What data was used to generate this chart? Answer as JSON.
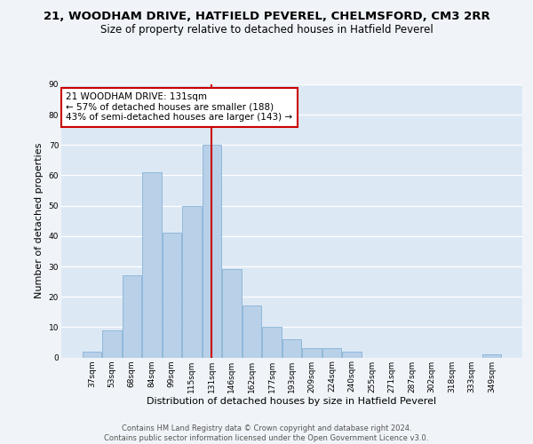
{
  "title": "21, WOODHAM DRIVE, HATFIELD PEVEREL, CHELMSFORD, CM3 2RR",
  "subtitle": "Size of property relative to detached houses in Hatfield Peverel",
  "xlabel": "Distribution of detached houses by size in Hatfield Peverel",
  "ylabel": "Number of detached properties",
  "categories": [
    "37sqm",
    "53sqm",
    "68sqm",
    "84sqm",
    "99sqm",
    "115sqm",
    "131sqm",
    "146sqm",
    "162sqm",
    "177sqm",
    "193sqm",
    "209sqm",
    "224sqm",
    "240sqm",
    "255sqm",
    "271sqm",
    "287sqm",
    "302sqm",
    "318sqm",
    "333sqm",
    "349sqm"
  ],
  "values": [
    2,
    9,
    27,
    61,
    41,
    50,
    70,
    29,
    17,
    10,
    6,
    3,
    3,
    2,
    0,
    0,
    0,
    0,
    0,
    0,
    1
  ],
  "bar_color": "#b8d0e8",
  "bar_edge_color": "#7aaad0",
  "highlight_index": 6,
  "vline_color": "#cc0000",
  "ylim": [
    0,
    90
  ],
  "yticks": [
    0,
    10,
    20,
    30,
    40,
    50,
    60,
    70,
    80,
    90
  ],
  "annotation_text": "21 WOODHAM DRIVE: 131sqm\n← 57% of detached houses are smaller (188)\n43% of semi-detached houses are larger (143) →",
  "annotation_box_color": "#ffffff",
  "annotation_box_edge_color": "#cc0000",
  "footer_text": "Contains HM Land Registry data © Crown copyright and database right 2024.\nContains public sector information licensed under the Open Government Licence v3.0.",
  "background_color": "#dce9f5",
  "fig_background_color": "#f0f4f8",
  "grid_color": "#ffffff",
  "title_fontsize": 9.5,
  "subtitle_fontsize": 8.5,
  "xlabel_fontsize": 8,
  "ylabel_fontsize": 8,
  "tick_fontsize": 6.5,
  "annotation_fontsize": 7.5,
  "footer_fontsize": 6
}
